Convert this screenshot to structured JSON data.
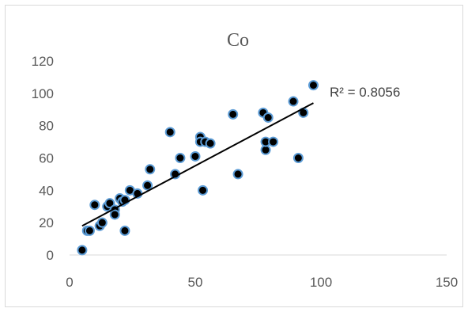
{
  "chart_data": {
    "type": "scatter",
    "title": "Co",
    "xlabel": "",
    "ylabel": "",
    "xlim": [
      0,
      150
    ],
    "ylim": [
      0,
      120
    ],
    "x_ticks": [
      0,
      50,
      100,
      150
    ],
    "y_ticks": [
      0,
      20,
      40,
      60,
      80,
      100,
      120
    ],
    "grid": false,
    "legend": "none",
    "marker_fill": "#000000",
    "marker_edge": "#5b9bd5",
    "trendline": {
      "type": "linear",
      "color": "#000000",
      "x_range": [
        5,
        97
      ],
      "y_range": [
        18,
        94
      ],
      "r_squared_label": "R² = 0.8056"
    },
    "series": [
      {
        "x": [
          5,
          7,
          8,
          10,
          12,
          13,
          15,
          16,
          18,
          18,
          20,
          21,
          22,
          22,
          24,
          27,
          31,
          32,
          40,
          42,
          44,
          50,
          52,
          52,
          53,
          54,
          56,
          65,
          67,
          77,
          78,
          78,
          79,
          81,
          89,
          91,
          93,
          97
        ],
        "y": [
          3,
          15,
          15,
          31,
          18,
          20,
          30,
          32,
          28,
          25,
          35,
          33,
          34,
          15,
          40,
          38,
          43,
          53,
          76,
          50,
          60,
          61,
          73,
          70,
          40,
          70,
          69,
          87,
          50,
          88,
          65,
          70,
          85,
          70,
          95,
          60,
          88,
          105
        ]
      }
    ]
  }
}
